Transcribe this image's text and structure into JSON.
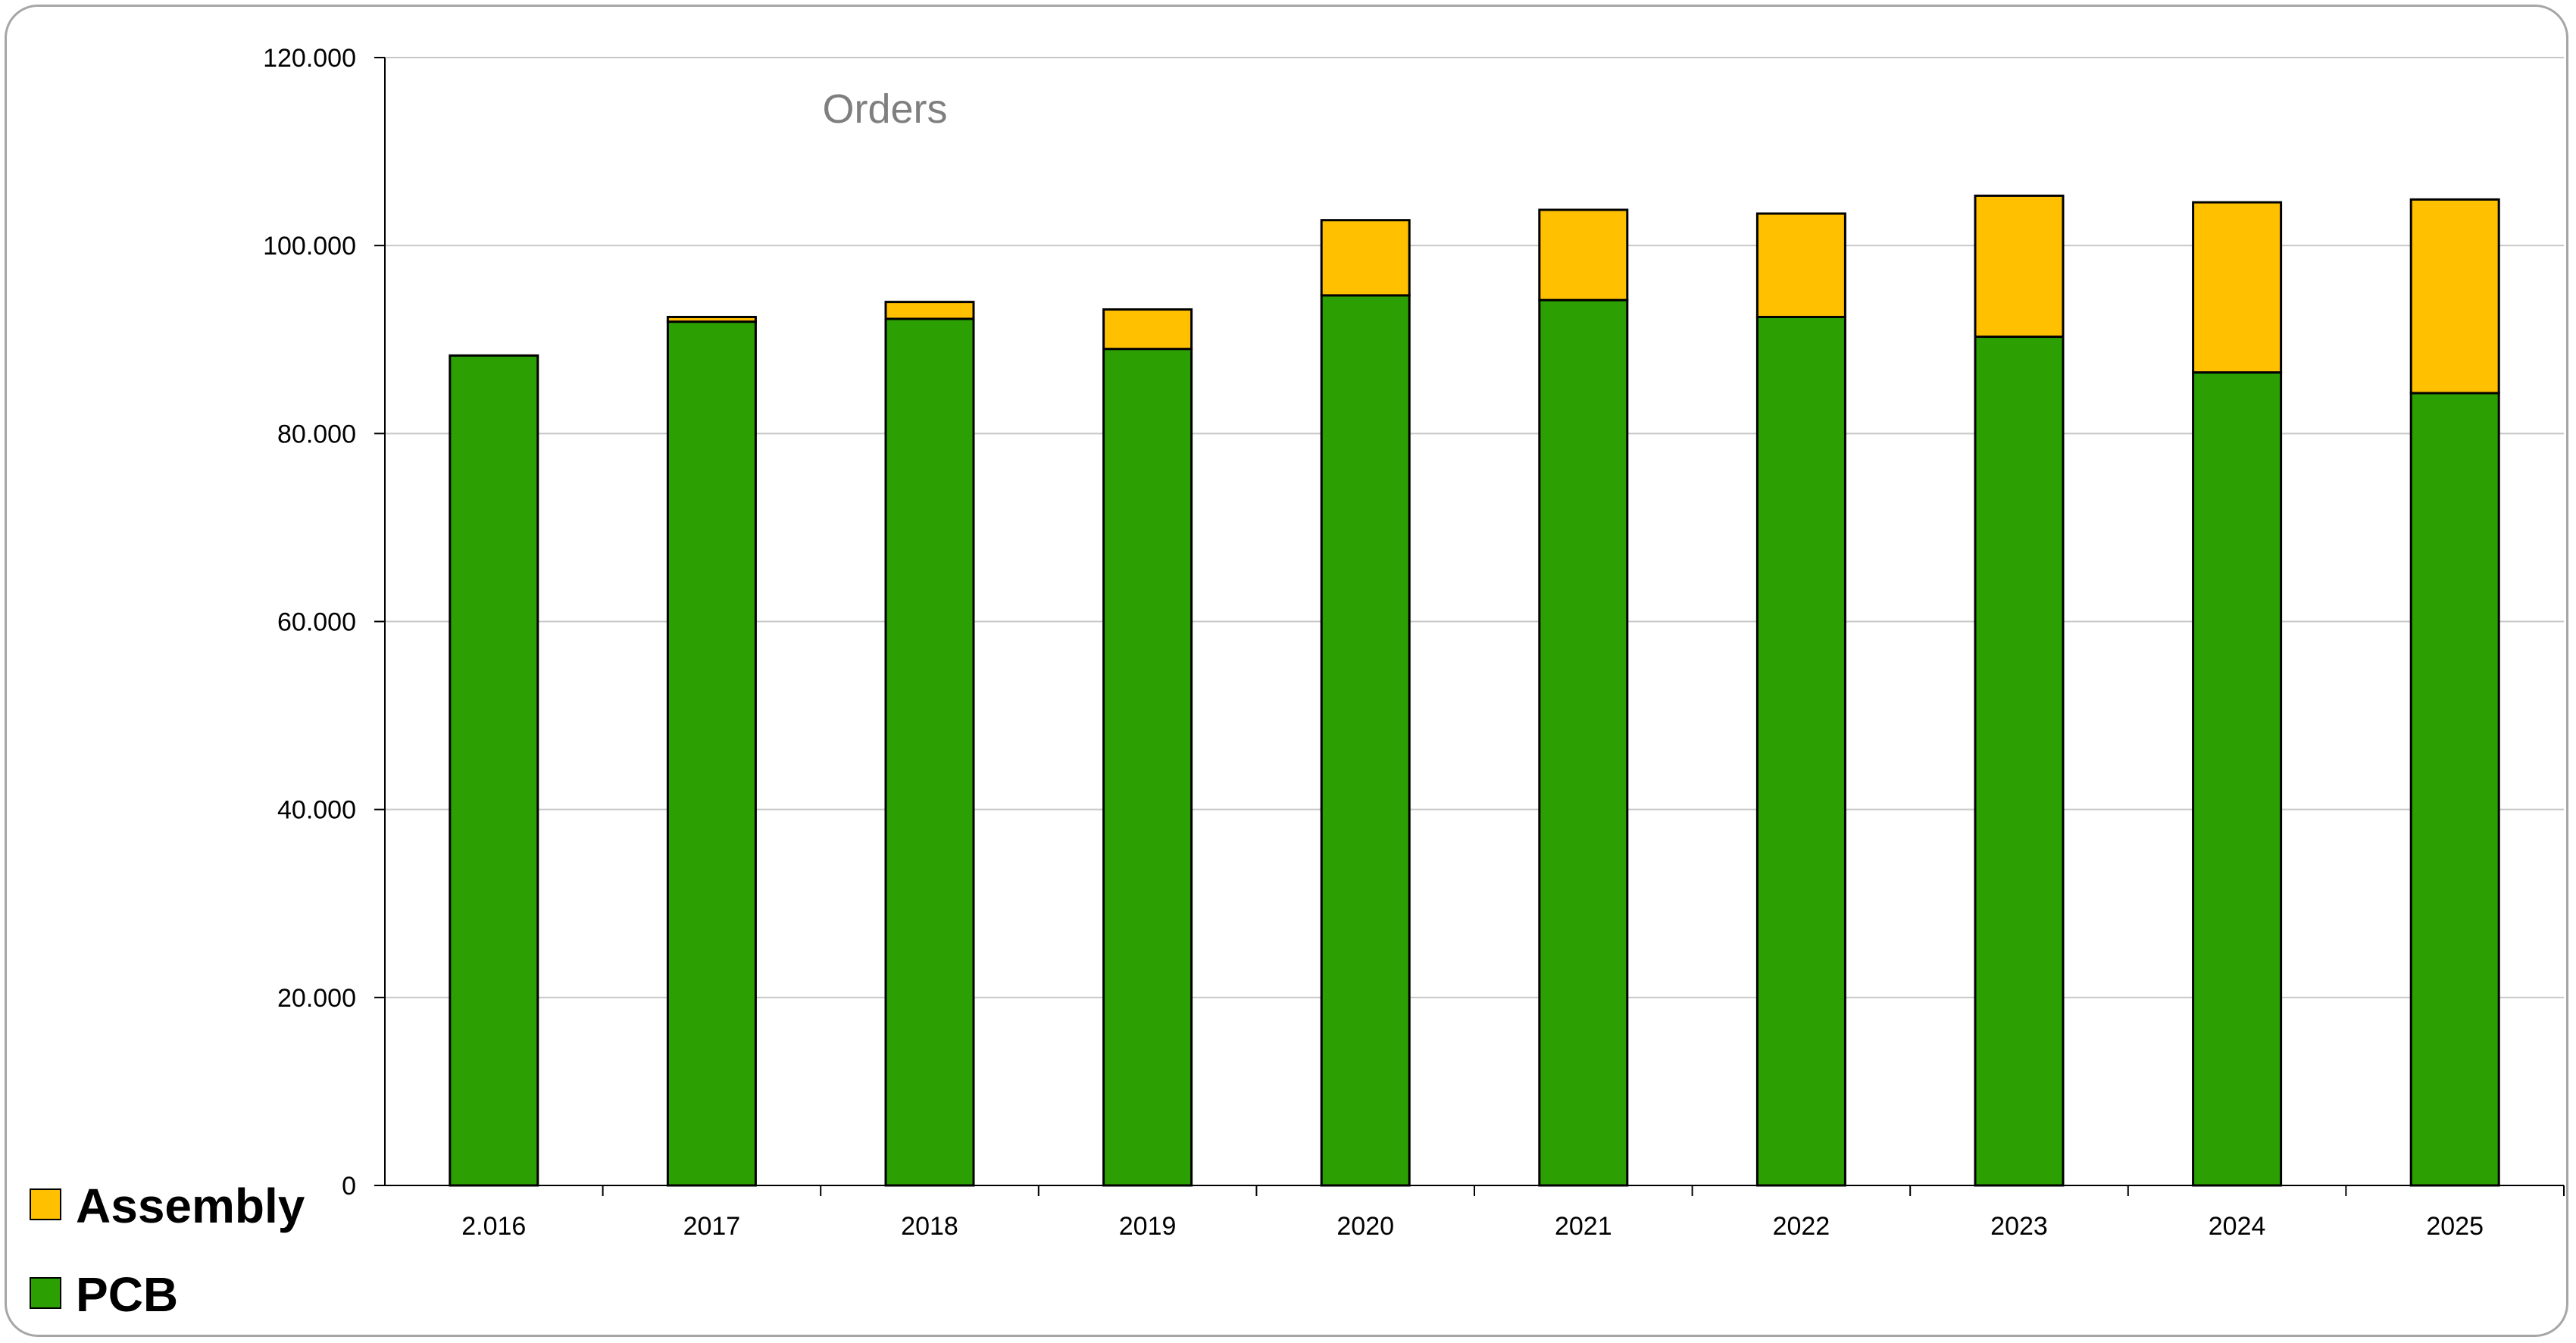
{
  "chart_data": {
    "type": "bar",
    "stacked": true,
    "title": "Orders",
    "xlabel": "",
    "ylabel": "",
    "categories": [
      "2.016",
      "2017",
      "2018",
      "2019",
      "2020",
      "2021",
      "2022",
      "2023",
      "2024",
      "2025"
    ],
    "series": [
      {
        "name": "PCB",
        "color": "#2ca002",
        "values": [
          88300,
          91900,
          92200,
          89000,
          94700,
          94200,
          92400,
          90300,
          86500,
          84300
        ]
      },
      {
        "name": "Assembly",
        "color": "#ffc000",
        "values": [
          0,
          500,
          1800,
          4200,
          8000,
          9600,
          11000,
          15000,
          18100,
          20600
        ]
      }
    ],
    "ylim": [
      0,
      120000
    ],
    "yticks": [
      0,
      20000,
      40000,
      60000,
      80000,
      100000,
      120000
    ],
    "ytick_labels": [
      "0",
      "20.000",
      "40.000",
      "60.000",
      "80.000",
      "100.000",
      "120.000"
    ],
    "grid": "horizontal",
    "legend": {
      "position": "bottom-left",
      "order": [
        "Assembly",
        "PCB"
      ]
    }
  }
}
